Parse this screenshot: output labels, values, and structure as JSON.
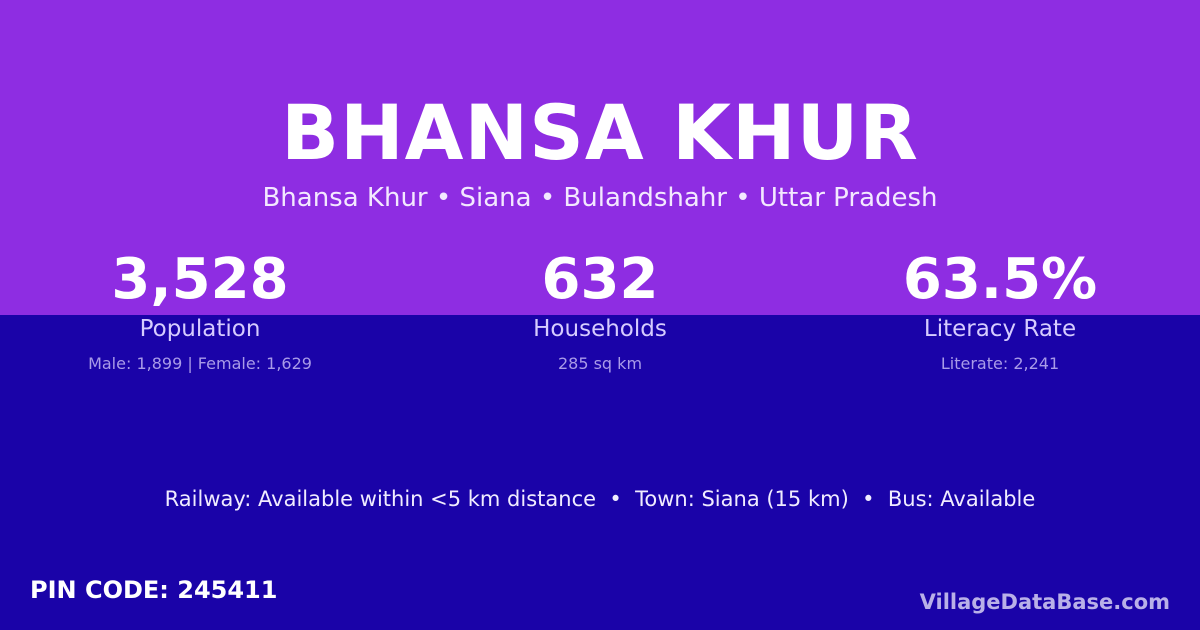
{
  "title": "BHANSA KHUR",
  "subtitle": "Bhansa Khur • Siana • Bulandshahr • Uttar Pradesh",
  "stats": [
    {
      "value": "3,528",
      "label": "Population",
      "detail": "Male: 1,899 | Female: 1,629"
    },
    {
      "value": "632",
      "label": "Households",
      "detail": "285 sq km"
    },
    {
      "value": "63.5%",
      "label": "Literacy Rate",
      "detail": "Literate: 2,241"
    }
  ],
  "info": "Railway: Available within <5 km distance  •  Town: Siana (15 km)  •  Bus: Available",
  "pin": "PIN CODE: 245411",
  "brand": "VillageDataBase.com",
  "colors": {
    "top": "#8e2de2",
    "bottom": "#1a03a8"
  }
}
